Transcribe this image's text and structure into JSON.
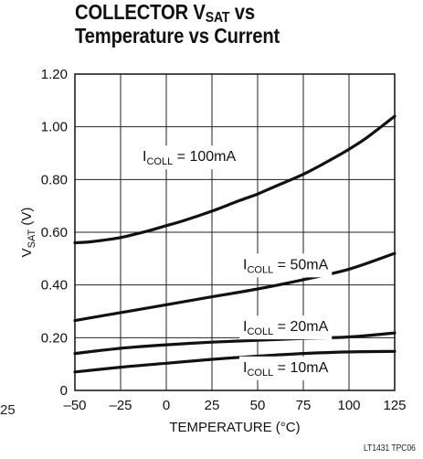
{
  "chart_data": {
    "type": "line",
    "title": {
      "line1_prefix": "COLLECTOR V",
      "line1_sub": "SAT",
      "line1_suffix": " vs",
      "line2": "Temperature vs Current"
    },
    "xlabel": "TEMPERATURE (°C)",
    "ylabel": {
      "main": "V",
      "sub": "SAT",
      "unit": " (V)"
    },
    "xlim": [
      -50,
      125
    ],
    "ylim": [
      0,
      1.2
    ],
    "xticks": [
      -50,
      -25,
      0,
      25,
      50,
      75,
      100,
      125
    ],
    "xtick_labels": [
      "–50",
      "–25",
      "0",
      "25",
      "50",
      "75",
      "100",
      "125"
    ],
    "yticks": [
      0,
      0.2,
      0.4,
      0.6,
      0.8,
      1.0,
      1.2
    ],
    "ytick_labels": [
      "0",
      "0.20",
      "0.40",
      "0.60",
      "0.80",
      "1.00",
      "1.20"
    ],
    "grid": true,
    "series": [
      {
        "name": {
          "main": "I",
          "sub": "COLL",
          "value": " = 100mA"
        },
        "label_at": [
          7,
          0.87
        ],
        "x": [
          -50,
          -40,
          -25,
          -10,
          0,
          10,
          25,
          40,
          50,
          60,
          75,
          90,
          100,
          110,
          125
        ],
        "y": [
          0.56,
          0.565,
          0.58,
          0.605,
          0.625,
          0.645,
          0.68,
          0.72,
          0.745,
          0.775,
          0.82,
          0.875,
          0.915,
          0.96,
          1.04
        ]
      },
      {
        "name": {
          "main": "I",
          "sub": "COLL",
          "value": " = 50mA"
        },
        "label_at": [
          62,
          0.46
        ],
        "x": [
          -50,
          -25,
          0,
          25,
          50,
          75,
          100,
          125
        ],
        "y": [
          0.265,
          0.295,
          0.325,
          0.355,
          0.385,
          0.42,
          0.46,
          0.52
        ]
      },
      {
        "name": {
          "main": "I",
          "sub": "COLL",
          "value": " = 20mA"
        },
        "label_at": [
          62,
          0.225
        ],
        "x": [
          -50,
          -25,
          0,
          25,
          50,
          75,
          100,
          125
        ],
        "y": [
          0.14,
          0.16,
          0.173,
          0.183,
          0.19,
          0.197,
          0.203,
          0.218
        ]
      },
      {
        "name": {
          "main": "I",
          "sub": "COLL",
          "value": " = 10mA"
        },
        "label_at": [
          62,
          0.07
        ],
        "x": [
          -50,
          -25,
          0,
          25,
          50,
          75,
          100,
          125
        ],
        "y": [
          0.07,
          0.088,
          0.103,
          0.118,
          0.13,
          0.14,
          0.146,
          0.148
        ]
      }
    ]
  },
  "figure_id": "LT1431 TPC06",
  "edge_tick_text": "25"
}
